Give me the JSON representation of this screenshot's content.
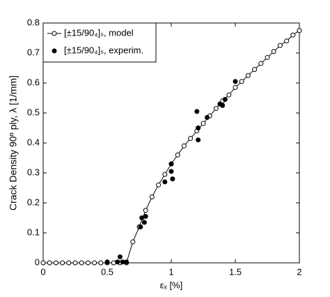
{
  "chart_data": {
    "type": "line",
    "xlabel": "εₓ [%]",
    "ylabel": "Crack Density 90º ply, λ [1/mm]",
    "xlim": [
      0,
      2
    ],
    "xticks": [
      0,
      0.5,
      1,
      1.5,
      2
    ],
    "ylim": [
      0,
      0.8
    ],
    "yticks": [
      0,
      0.1,
      0.2,
      0.3,
      0.4,
      0.5,
      0.6,
      0.7,
      0.8
    ],
    "grid": false,
    "legend": "upper left",
    "series": [
      {
        "name": "[±15/90₄]ₛ, model",
        "color": "#000000",
        "marker": "open-circle",
        "type": "line",
        "x": [
          0,
          0.05,
          0.1,
          0.15,
          0.2,
          0.25,
          0.3,
          0.35,
          0.4,
          0.45,
          0.5,
          0.55,
          0.6,
          0.65,
          0.7,
          0.75,
          0.8,
          0.85,
          0.9,
          0.95,
          1,
          1.05,
          1.1,
          1.15,
          1.2,
          1.25,
          1.3,
          1.35,
          1.4,
          1.45,
          1.5,
          1.55,
          1.6,
          1.65,
          1.7,
          1.75,
          1.8,
          1.85,
          1.9,
          1.95,
          2
        ],
        "values": [
          0,
          0,
          0,
          0,
          0,
          0,
          0,
          0,
          0,
          0,
          0,
          0,
          0,
          0,
          0.07,
          0.12,
          0.175,
          0.22,
          0.26,
          0.295,
          0.33,
          0.36,
          0.39,
          0.415,
          0.44,
          0.465,
          0.49,
          0.515,
          0.54,
          0.56,
          0.585,
          0.605,
          0.625,
          0.645,
          0.665,
          0.685,
          0.705,
          0.725,
          0.74,
          0.76,
          0.775
        ]
      },
      {
        "name": "[±15/90₄]ₛ, experim.",
        "color": "#000000",
        "marker": "filled-circle",
        "type": "scatter",
        "x": [
          0.5,
          0.58,
          0.6,
          0.62,
          0.65,
          0.76,
          0.77,
          0.79,
          0.8,
          0.95,
          1.0,
          1.0,
          1.01,
          1.2,
          1.21,
          1.21,
          1.28,
          1.38,
          1.4,
          1.42,
          1.5
        ],
        "values": [
          0.003,
          0.003,
          0.02,
          0.003,
          0.003,
          0.12,
          0.15,
          0.135,
          0.155,
          0.27,
          0.33,
          0.305,
          0.28,
          0.505,
          0.45,
          0.41,
          0.485,
          0.53,
          0.525,
          0.545,
          0.605
        ]
      }
    ]
  }
}
